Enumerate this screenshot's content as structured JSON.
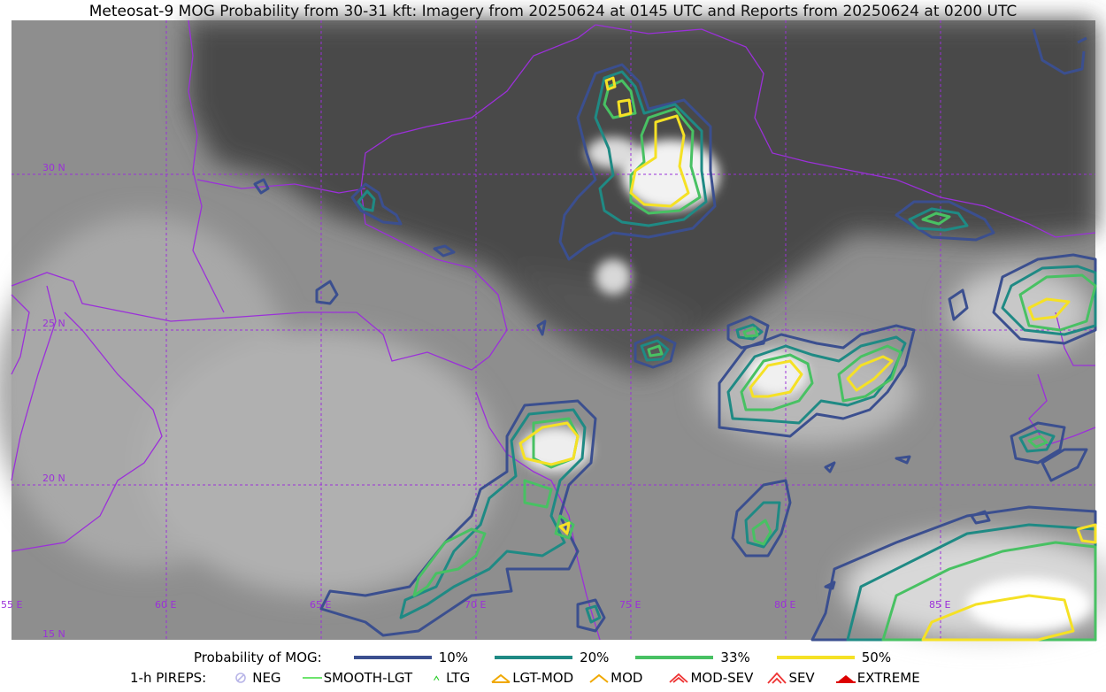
{
  "title": "Meteosat-9 MOG Probability from 30-31 kft: Imagery from 20250624 at 0145 UTC and Reports from 20250624 at 0200 UTC",
  "map": {
    "lat_labels": [
      "30 N",
      "25 N",
      "20 N",
      "15 N"
    ],
    "lon_labels": [
      "55 E",
      "60 E",
      "65 E",
      "70 E",
      "75 E",
      "80 E",
      "85 E"
    ],
    "border_color": "#9b30d9",
    "contour_colors": {
      "p10": "#3b4f8f",
      "p20": "#1f8a84",
      "p33": "#48c163",
      "p50": "#f5e125"
    }
  },
  "legend": {
    "prob_title": "Probability of MOG:",
    "prob_items": [
      {
        "label": "10%",
        "color": "#3b4f8f"
      },
      {
        "label": "20%",
        "color": "#1f8a84"
      },
      {
        "label": "33%",
        "color": "#48c163"
      },
      {
        "label": "50%",
        "color": "#f5e125"
      }
    ],
    "pirep_title": "1-h PIREPS:",
    "pirep_items": [
      {
        "label": "NEG",
        "icon": "neg-circle-icon",
        "color": "#b9b6e8"
      },
      {
        "label": "SMOOTH-LGT",
        "icon": "smooth-line-icon",
        "color": "#3ddc3d"
      },
      {
        "label": "LTG",
        "icon": "ltg-caret-icon",
        "color": "#22cc22"
      },
      {
        "label": "LGT-MOD",
        "icon": "lgt-mod-icon",
        "color": "#f0a800"
      },
      {
        "label": "MOD",
        "icon": "mod-caret-icon",
        "color": "#f0a800"
      },
      {
        "label": "MOD-SEV",
        "icon": "mod-sev-icon",
        "color": "#ee3333"
      },
      {
        "label": "SEV",
        "icon": "sev-icon",
        "color": "#ee3333"
      },
      {
        "label": "EXTREME",
        "icon": "extreme-icon",
        "color": "#dd0000"
      }
    ]
  }
}
